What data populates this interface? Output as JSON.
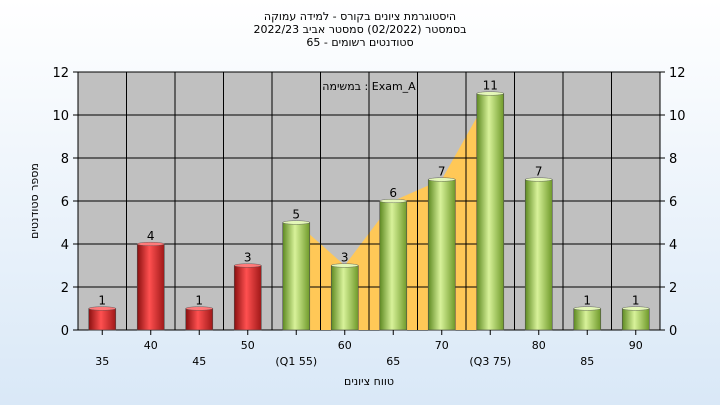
{
  "chart_data": {
    "type": "bar",
    "title_lines": [
      "היסטוגרמת ציונים בקורס - למידה עמוקה",
      "בסמסטר  (02/2022)  סמסטר אביב 2022/23",
      "סטודנטים רשומים - 65"
    ],
    "annotation": "במשימה : Exam_A",
    "xlabel": "טווח ציונים",
    "ylabel": "מספר סטודנטים",
    "ylim": [
      0,
      12
    ],
    "yticks": [
      0,
      2,
      4,
      6,
      8,
      10,
      12
    ],
    "grid": true,
    "categories": [
      "35",
      "40",
      "45",
      "50",
      "(Q1 55)",
      "60",
      "65",
      "70",
      "(Q3 75)",
      "80",
      "85",
      "90"
    ],
    "values": [
      1,
      4,
      1,
      3,
      5,
      3,
      6,
      7,
      11,
      7,
      1,
      1
    ],
    "bar_colors": [
      "red",
      "red",
      "red",
      "red",
      "green",
      "green",
      "green",
      "green",
      "green",
      "green",
      "green",
      "green"
    ],
    "interquartile_band": {
      "from": "(Q1 55)",
      "to": "(Q3 75)"
    },
    "colors": {
      "red": "#d42a2a",
      "green": "#8fbf3f",
      "band": "#ffc857",
      "plot_bg": "#c0c0c0"
    }
  }
}
